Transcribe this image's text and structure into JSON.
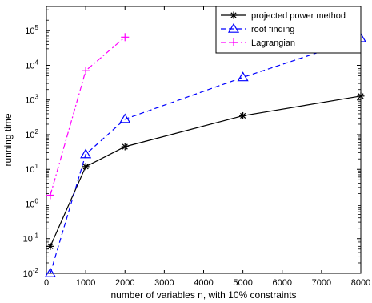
{
  "chart_data": {
    "type": "line",
    "title": "",
    "xlabel": "number of variables n, with 10% constraints",
    "ylabel": "running time",
    "x_scale": "linear",
    "y_scale": "log",
    "xlim": [
      0,
      8000
    ],
    "ylim": [
      0.01,
      500000
    ],
    "x_ticks": [
      0,
      1000,
      2000,
      3000,
      4000,
      5000,
      6000,
      7000,
      8000
    ],
    "y_ticks": [
      {
        "value": 0.01,
        "exp": "-2"
      },
      {
        "value": 0.1,
        "exp": "-1"
      },
      {
        "value": 1,
        "exp": "0"
      },
      {
        "value": 10,
        "exp": "1"
      },
      {
        "value": 100,
        "exp": "2"
      },
      {
        "value": 1000,
        "exp": "3"
      },
      {
        "value": 10000,
        "exp": "4"
      },
      {
        "value": 100000,
        "exp": "5"
      }
    ],
    "y_tick_base": "10",
    "grid": false,
    "legend_position": "top-right",
    "series": [
      {
        "name": "projected power method",
        "color": "#000000",
        "line_style": "solid",
        "marker": "asterisk",
        "x": [
          100,
          1000,
          2000,
          5000,
          8000
        ],
        "y": [
          0.06,
          12,
          45,
          350,
          1300
        ]
      },
      {
        "name": "root finding",
        "color": "#0000ff",
        "line_style": "dashed",
        "marker": "triangle",
        "x": [
          100,
          1000,
          2000,
          5000,
          8000
        ],
        "y": [
          0.01,
          27,
          280,
          4500,
          60000
        ]
      },
      {
        "name": "Lagrangian",
        "color": "#ff00ff",
        "line_style": "dashdot",
        "marker": "plus",
        "x": [
          100,
          1000,
          2000
        ],
        "y": [
          1.8,
          7000,
          65000
        ]
      }
    ]
  }
}
